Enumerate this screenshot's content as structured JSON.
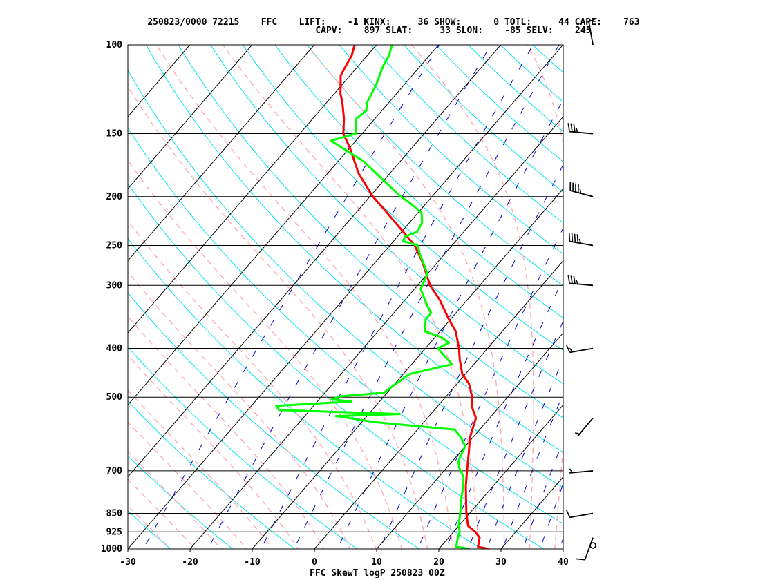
{
  "header": {
    "line1": [
      {
        "key": "stamp",
        "label": "250823/0000 72215"
      },
      {
        "key": "station",
        "label": "FFC"
      },
      {
        "key": "lift",
        "label": "LIFT:    -1"
      },
      {
        "key": "kinx",
        "label": "KINX:     36"
      },
      {
        "key": "show",
        "label": "SHOW:      0"
      },
      {
        "key": "totl",
        "label": "TOTL:     44"
      },
      {
        "key": "cape",
        "label": "CAPE:    763"
      }
    ],
    "line2": [
      {
        "key": "capv",
        "label": "CAPV:    897"
      },
      {
        "key": "slat",
        "label": "SLAT:     33"
      },
      {
        "key": "slon",
        "label": "SLON:    -85"
      },
      {
        "key": "selv",
        "label": "SELV:    245"
      }
    ]
  },
  "caption": "FFC SkewT logP 250823 00Z",
  "colors": {
    "temperature": "#ff0000",
    "dewpoint": "#00ff00",
    "isotherm": "#000000",
    "isobar": "#000000",
    "dry_adiabat": "#00e5ee",
    "moist_adiabat": "#ffaab4",
    "mixing_ratio": "#0000cc"
  },
  "chart_data": {
    "type": "line",
    "pressure_levels": [
      "100",
      "150",
      "200",
      "250",
      "300",
      "400",
      "500",
      "700",
      "850",
      "925",
      "1000"
    ],
    "x_ticks": [
      "-30",
      "-20",
      "-10",
      "0",
      "10",
      "20",
      "30",
      "40"
    ],
    "xlim": [
      -30,
      40
    ],
    "ylim": [
      1000,
      100
    ],
    "y_scale": "log",
    "series": [
      {
        "key": "temp",
        "points": [
          [
            1000,
            28
          ],
          [
            990,
            26
          ],
          [
            950,
            25
          ],
          [
            925,
            23.5
          ],
          [
            900,
            21.5
          ],
          [
            850,
            19.5
          ],
          [
            800,
            17.6
          ],
          [
            750,
            15.6
          ],
          [
            700,
            13.7
          ],
          [
            650,
            11.7
          ],
          [
            600,
            9.5
          ],
          [
            550,
            7.8
          ],
          [
            520,
            5.4
          ],
          [
            500,
            4.3
          ],
          [
            470,
            1.9
          ],
          [
            450,
            -0.5
          ],
          [
            420,
            -3.0
          ],
          [
            400,
            -4.6
          ],
          [
            370,
            -7.5
          ],
          [
            350,
            -10.3
          ],
          [
            320,
            -14.5
          ],
          [
            300,
            -18.0
          ],
          [
            270,
            -22.4
          ],
          [
            250,
            -26.0
          ],
          [
            230,
            -31.0
          ],
          [
            210,
            -36.5
          ],
          [
            200,
            -39.5
          ],
          [
            180,
            -45.0
          ],
          [
            160,
            -50.0
          ],
          [
            150,
            -53.0
          ],
          [
            140,
            -55.0
          ],
          [
            130,
            -57.5
          ],
          [
            125,
            -59.0
          ],
          [
            115,
            -61.5
          ],
          [
            110,
            -62.0
          ],
          [
            105,
            -62.5
          ],
          [
            100,
            -63.5
          ]
        ]
      },
      {
        "key": "dewp",
        "points": [
          [
            1000,
            25
          ],
          [
            990,
            22.5
          ],
          [
            950,
            21.5
          ],
          [
            925,
            21.0
          ],
          [
            900,
            20.0
          ],
          [
            850,
            18.5
          ],
          [
            800,
            16.8
          ],
          [
            750,
            15.2
          ],
          [
            720,
            14.0
          ],
          [
            690,
            12.0
          ],
          [
            670,
            11.0
          ],
          [
            650,
            10.5
          ],
          [
            625,
            10.0
          ],
          [
            600,
            8.0
          ],
          [
            580,
            6.0
          ],
          [
            560,
            -8.0
          ],
          [
            550,
            -12.5
          ],
          [
            545,
            -15.0
          ],
          [
            540,
            -5.0
          ],
          [
            535,
            -15.0
          ],
          [
            530,
            -25.0
          ],
          [
            520,
            -26.0
          ],
          [
            510,
            -14.5
          ],
          [
            505,
            -18.0
          ],
          [
            498,
            -17.0
          ],
          [
            490,
            -10.5
          ],
          [
            475,
            -10.0
          ],
          [
            450,
            -9.0
          ],
          [
            430,
            -3.5
          ],
          [
            420,
            -5.0
          ],
          [
            400,
            -8.0
          ],
          [
            390,
            -7.0
          ],
          [
            380,
            -9.0
          ],
          [
            370,
            -12.5
          ],
          [
            350,
            -14.0
          ],
          [
            340,
            -14.0
          ],
          [
            330,
            -15.5
          ],
          [
            310,
            -18.3
          ],
          [
            305,
            -19.0
          ],
          [
            295,
            -19.5
          ],
          [
            285,
            -20.0
          ],
          [
            275,
            -21.5
          ],
          [
            260,
            -24.0
          ],
          [
            250,
            -25.5
          ],
          [
            245,
            -28.5
          ],
          [
            240,
            -28.8
          ],
          [
            235,
            -27.5
          ],
          [
            225,
            -28.0
          ],
          [
            215,
            -29.5
          ],
          [
            205,
            -33.0
          ],
          [
            200,
            -35.0
          ],
          [
            190,
            -38.5
          ],
          [
            170,
            -46.0
          ],
          [
            155,
            -54.0
          ],
          [
            150,
            -51.0
          ],
          [
            145,
            -52.0
          ],
          [
            140,
            -53.0
          ],
          [
            135,
            -52.5
          ],
          [
            130,
            -53.5
          ],
          [
            120,
            -54.5
          ],
          [
            110,
            -56.0
          ],
          [
            105,
            -56.5
          ],
          [
            100,
            -57.5
          ]
        ]
      }
    ],
    "wind_barbs": [
      {
        "p": 1000,
        "dir": 0,
        "kt": 0
      },
      {
        "p": 950,
        "dir": 200,
        "kt": 10
      },
      {
        "p": 850,
        "dir": 260,
        "kt": 10
      },
      {
        "p": 700,
        "dir": 265,
        "kt": 5
      },
      {
        "p": 550,
        "dir": 220,
        "kt": 5
      },
      {
        "p": 400,
        "dir": 260,
        "kt": 15
      },
      {
        "p": 300,
        "dir": 275,
        "kt": 35
      },
      {
        "p": 250,
        "dir": 280,
        "kt": 45
      },
      {
        "p": 200,
        "dir": 285,
        "kt": 45
      },
      {
        "p": 150,
        "dir": 275,
        "kt": 35
      },
      {
        "p": 100,
        "dir": 350,
        "kt": 10
      }
    ]
  }
}
